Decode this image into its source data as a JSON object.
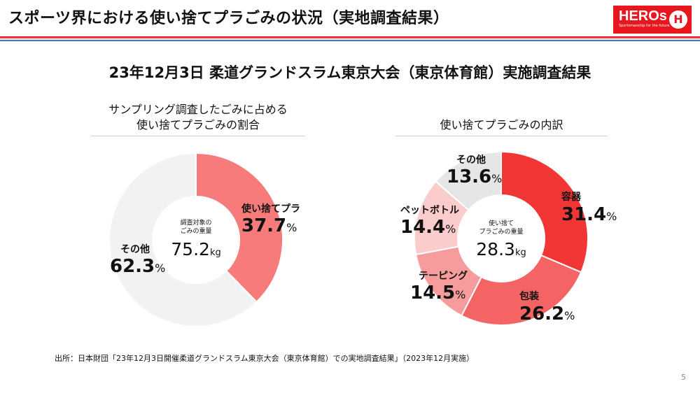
{
  "header": {
    "title": "スポーツ界における使い捨てプラごみの状況（実地調査結果）",
    "logo_text": "HEROs",
    "logo_tagline": "Sportsmanship for the future",
    "logo_mark": "H",
    "colors": {
      "red": "#e8161e",
      "blue": "#3a7bc8"
    }
  },
  "subtitle": "23年12月3日 柔道グランドスラム東京大会（東京体育館）実施調査結果",
  "chart_data": [
    {
      "type": "pie",
      "donut": true,
      "title": "サンプリング調査したごみに占める\n使い捨てプラごみの割合",
      "title_lines": [
        "サンプリング調査したごみに占める",
        "使い捨てプラごみの割合"
      ],
      "center_label_lines": [
        "調査対象の",
        "ごみの重量"
      ],
      "center_value": "75.2",
      "center_unit": "kg",
      "slices": [
        {
          "name": "使い捨てプラ",
          "value": 37.7,
          "color": "#f77b7b"
        },
        {
          "name": "その他",
          "value": 62.3,
          "color": "#f2f2f2"
        }
      ]
    },
    {
      "type": "pie",
      "donut": true,
      "title": "使い捨てプラごみの内訳",
      "center_label_lines": [
        "使い捨て",
        "プラごみの重量"
      ],
      "center_value": "28.3",
      "center_unit": "kg",
      "slices": [
        {
          "name": "容器",
          "value": 31.4,
          "color": "#f23636"
        },
        {
          "name": "包装",
          "value": 26.2,
          "color": "#f46464"
        },
        {
          "name": "テーピング",
          "value": 14.5,
          "color": "#f79c9c"
        },
        {
          "name": "ペットボトル",
          "value": 14.4,
          "color": "#fbcccc"
        },
        {
          "name": "その他",
          "value": 13.6,
          "color": "#e6e6e6"
        }
      ]
    }
  ],
  "pct": "%",
  "source": "出所：日本財団「23年12月3日開催柔道グランドスラム東京大会（東京体育館）での実地調査結果」（2023年12月実施）",
  "page_number": "5"
}
